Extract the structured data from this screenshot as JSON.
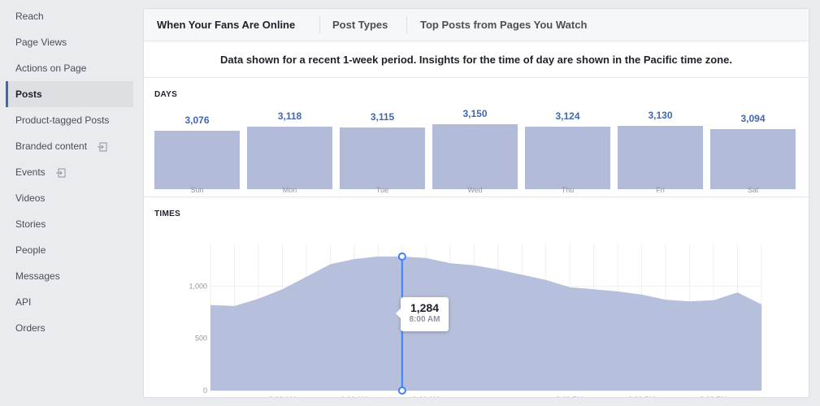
{
  "sidebar": {
    "items": [
      {
        "label": "Reach",
        "active": false,
        "external": false
      },
      {
        "label": "Page Views",
        "active": false,
        "external": false
      },
      {
        "label": "Actions on Page",
        "active": false,
        "external": false
      },
      {
        "label": "Posts",
        "active": true,
        "external": false
      },
      {
        "label": "Product-tagged Posts",
        "active": false,
        "external": false
      },
      {
        "label": "Branded content",
        "active": false,
        "external": true
      },
      {
        "label": "Events",
        "active": false,
        "external": true
      },
      {
        "label": "Videos",
        "active": false,
        "external": false
      },
      {
        "label": "Stories",
        "active": false,
        "external": false
      },
      {
        "label": "People",
        "active": false,
        "external": false
      },
      {
        "label": "Messages",
        "active": false,
        "external": false
      },
      {
        "label": "API",
        "active": false,
        "external": false
      },
      {
        "label": "Orders",
        "active": false,
        "external": false
      }
    ]
  },
  "tabs": [
    {
      "label": "When Your Fans Are Online",
      "active": true
    },
    {
      "label": "Post Types",
      "active": false
    },
    {
      "label": "Top Posts from Pages You Watch",
      "active": false
    }
  ],
  "notice": "Data shown for a recent 1-week period. Insights for the time of day are shown in the Pacific time zone.",
  "days_label": "DAYS",
  "times_label": "TIMES",
  "colors": {
    "accent": "#4267b2",
    "bar": "#b2bcd9",
    "area": "#b2bcd9",
    "marker": "#4080ff"
  },
  "tooltip": {
    "value": "1,284",
    "time": "8:00 AM"
  },
  "chart_data": [
    {
      "type": "bar",
      "categories": [
        "Sun",
        "Mon",
        "Tue",
        "Wed",
        "Thu",
        "Fri",
        "Sat"
      ],
      "values": [
        3076,
        3118,
        3115,
        3150,
        3124,
        3130,
        3094
      ],
      "value_labels": [
        "3,076",
        "3,118",
        "3,115",
        "3,150",
        "3,124",
        "3,130",
        "3,094"
      ],
      "title": "DAYS"
    },
    {
      "type": "area",
      "title": "TIMES",
      "x_hours": [
        0,
        1,
        2,
        3,
        4,
        5,
        6,
        7,
        8,
        9,
        10,
        11,
        12,
        13,
        14,
        15,
        16,
        17,
        18,
        19,
        20,
        21,
        22,
        23
      ],
      "values": [
        820,
        810,
        880,
        970,
        1090,
        1210,
        1260,
        1284,
        1284,
        1270,
        1220,
        1200,
        1160,
        1110,
        1060,
        990,
        970,
        950,
        920,
        870,
        855,
        865,
        940,
        825
      ],
      "ylim": [
        0,
        1400
      ],
      "yticks": [
        0,
        500,
        1000
      ],
      "ytick_labels": [
        "0",
        "500",
        "1,000"
      ],
      "xticks": [
        3,
        6,
        9,
        15,
        18,
        21
      ],
      "xtick_labels": [
        "3:00 AM",
        "6:00 AM",
        "9:00 AM",
        "3:00 PM",
        "6:00 PM",
        "9:00 PM"
      ],
      "highlight_hour": 8,
      "grid": true
    }
  ]
}
